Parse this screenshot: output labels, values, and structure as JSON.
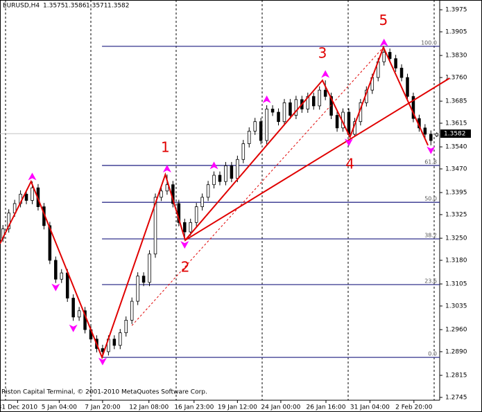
{
  "chart_data": {
    "type": "candlestick",
    "symbol": "EURUSD,H4",
    "footer": "Riston Capital Terminal, © 2001-2010 MetaQuotes Software Corp.",
    "xlim": [
      0,
      75
    ],
    "ylim": [
      1.2736,
      1.4006
    ],
    "yticks": [
      1.3975,
      1.3905,
      {
        "value": 1.383,
        "label": "1.3830"
      },
      {
        "value": 1.376,
        "label": "1.3760"
      },
      1.3685,
      1.3615,
      {
        "value": 1.354,
        "label": "1.3540"
      },
      {
        "value": 1.347,
        "label": "1.3470"
      },
      1.3395,
      1.3325,
      {
        "value": 1.325,
        "label": "1.3250"
      },
      {
        "value": 1.318,
        "label": "1.3180"
      },
      1.3105,
      1.3035,
      {
        "value": 1.296,
        "label": "1.2960"
      },
      {
        "value": 1.289,
        "label": "1.2890"
      },
      1.2815,
      1.2745
    ],
    "xticks": [
      {
        "value": 3.0,
        "label": "31 Dec 2010"
      },
      {
        "value": 10.1,
        "label": "5 Jan 04:00"
      },
      {
        "value": 17.5,
        "label": "7 Jan 20:00"
      },
      {
        "value": 25.4,
        "label": "12 Jan 08:00"
      },
      {
        "value": 33.1,
        "label": "16 Jan 23:00"
      },
      {
        "value": 40.5,
        "label": "19 Jan 12:00"
      },
      {
        "value": 47.9,
        "label": "24 Jan 00:00"
      },
      {
        "value": 55.6,
        "label": "26 Jan 16:00"
      },
      {
        "value": 63.1,
        "label": "31 Jan 04:00"
      },
      {
        "value": 70.6,
        "label": "2 Feb 20:00"
      }
    ],
    "ohlc": [
      [
        1.325,
        1.3292,
        1.3238,
        1.328
      ],
      [
        1.328,
        1.3342,
        1.3268,
        1.333
      ],
      [
        1.333,
        1.3372,
        1.3318,
        1.336
      ],
      [
        1.336,
        1.3402,
        1.3348,
        1.339
      ],
      [
        1.339,
        1.3402,
        1.3358,
        1.337
      ],
      [
        1.337,
        1.343,
        1.3358,
        1.341
      ],
      [
        1.341,
        1.3422,
        1.3338,
        1.335
      ],
      [
        1.335,
        1.3362,
        1.3278,
        1.329
      ],
      [
        1.329,
        1.3302,
        1.3168,
        1.318
      ],
      [
        1.318,
        1.3192,
        1.3108,
        1.312
      ],
      [
        1.312,
        1.3152,
        1.3108,
        1.314
      ],
      [
        1.314,
        1.3152,
        1.3048,
        1.306
      ],
      [
        1.306,
        1.3072,
        1.2988,
        1.3
      ],
      [
        1.3,
        1.3032,
        1.2988,
        1.302
      ],
      [
        1.302,
        1.3032,
        1.2948,
        1.296
      ],
      [
        1.296,
        1.2972,
        1.2918,
        1.293
      ],
      [
        1.293,
        1.2942,
        1.2888,
        1.29
      ],
      [
        1.29,
        1.2912,
        1.2872,
        1.289
      ],
      [
        1.289,
        1.2942,
        1.2878,
        1.293
      ],
      [
        1.293,
        1.2942,
        1.2898,
        1.291
      ],
      [
        1.291,
        1.2962,
        1.2898,
        1.295
      ],
      [
        1.295,
        1.3002,
        1.2938,
        1.299
      ],
      [
        1.299,
        1.3062,
        1.2978,
        1.305
      ],
      [
        1.305,
        1.3142,
        1.3038,
        1.313
      ],
      [
        1.313,
        1.3142,
        1.3098,
        1.311
      ],
      [
        1.311,
        1.3212,
        1.3098,
        1.32
      ],
      [
        1.32,
        1.3392,
        1.3188,
        1.338
      ],
      [
        1.338,
        1.3412,
        1.3368,
        1.34
      ],
      [
        1.34,
        1.3452,
        1.3388,
        1.342
      ],
      [
        1.342,
        1.3432,
        1.3348,
        1.336
      ],
      [
        1.336,
        1.3372,
        1.3288,
        1.33
      ],
      [
        1.33,
        1.3312,
        1.3244,
        1.327
      ],
      [
        1.327,
        1.3312,
        1.3258,
        1.33
      ],
      [
        1.33,
        1.3362,
        1.3288,
        1.335
      ],
      [
        1.335,
        1.3392,
        1.3338,
        1.338
      ],
      [
        1.338,
        1.3432,
        1.3368,
        1.342
      ],
      [
        1.342,
        1.3462,
        1.3408,
        1.345
      ],
      [
        1.345,
        1.3462,
        1.3418,
        1.343
      ],
      [
        1.343,
        1.3492,
        1.3418,
        1.348
      ],
      [
        1.348,
        1.3492,
        1.3428,
        1.344
      ],
      [
        1.344,
        1.3512,
        1.3428,
        1.35
      ],
      [
        1.35,
        1.3562,
        1.3488,
        1.355
      ],
      [
        1.355,
        1.3602,
        1.3538,
        1.359
      ],
      [
        1.359,
        1.3632,
        1.3578,
        1.362
      ],
      [
        1.362,
        1.3632,
        1.3548,
        1.356
      ],
      [
        1.356,
        1.3672,
        1.3548,
        1.366
      ],
      [
        1.366,
        1.3672,
        1.3638,
        1.365
      ],
      [
        1.365,
        1.3662,
        1.3608,
        1.362
      ],
      [
        1.362,
        1.3692,
        1.3608,
        1.368
      ],
      [
        1.368,
        1.3692,
        1.3628,
        1.364
      ],
      [
        1.364,
        1.3702,
        1.3628,
        1.369
      ],
      [
        1.369,
        1.3702,
        1.3648,
        1.366
      ],
      [
        1.366,
        1.3712,
        1.3648,
        1.37
      ],
      [
        1.37,
        1.3712,
        1.3658,
        1.367
      ],
      [
        1.367,
        1.3732,
        1.3658,
        1.372
      ],
      [
        1.372,
        1.3751,
        1.3688,
        1.37
      ],
      [
        1.37,
        1.3712,
        1.3628,
        1.364
      ],
      [
        1.364,
        1.3652,
        1.3588,
        1.36
      ],
      [
        1.36,
        1.3662,
        1.3588,
        1.365
      ],
      [
        1.365,
        1.3662,
        1.3571,
        1.358
      ],
      [
        1.358,
        1.3632,
        1.3575,
        1.362
      ],
      [
        1.362,
        1.3692,
        1.3608,
        1.368
      ],
      [
        1.368,
        1.3732,
        1.3668,
        1.372
      ],
      [
        1.372,
        1.3772,
        1.3708,
        1.376
      ],
      [
        1.376,
        1.3822,
        1.3748,
        1.381
      ],
      [
        1.381,
        1.3856,
        1.3798,
        1.384
      ],
      [
        1.384,
        1.3852,
        1.3808,
        1.382
      ],
      [
        1.382,
        1.3832,
        1.3778,
        1.379
      ],
      [
        1.379,
        1.3802,
        1.3748,
        1.376
      ],
      [
        1.376,
        1.3772,
        1.3688,
        1.37
      ],
      [
        1.37,
        1.3712,
        1.3618,
        1.363
      ],
      [
        1.363,
        1.3642,
        1.3588,
        1.36
      ],
      [
        1.36,
        1.3612,
        1.3568,
        1.358
      ],
      [
        1.358,
        1.3592,
        1.3545,
        1.356
      ],
      [
        1.3575,
        1.3586,
        1.3571,
        1.3582
      ]
    ],
    "zigzag": {
      "color": "#e00000",
      "x": [
        0,
        5.3,
        17.4,
        28.2,
        31.6,
        55.0,
        59.7,
        65.4,
        73.0
      ],
      "y": [
        1.3233,
        1.343,
        1.2872,
        1.3452,
        1.3244,
        1.3751,
        1.3571,
        1.3856,
        1.3545
      ]
    },
    "wave_labels": [
      "1",
      "2",
      "3",
      "4",
      "5"
    ],
    "trendline": {
      "x": [
        31.6,
        76.7
      ],
      "y": [
        1.3244,
        1.3758
      ]
    },
    "channel": {
      "x": [
        22.5,
        65.4
      ],
      "y": [
        1.2973,
        1.3856
      ]
    },
    "fib_color": "#30308c",
    "fib_levels": [
      {
        "level": {
          "value": 100,
          "label": "100.0"
        },
        "price": 1.3859
      },
      {
        "level": 61.8,
        "price": 1.3481
      },
      {
        "level": {
          "value": 50,
          "label": "50.0"
        },
        "price": 1.3364
      },
      {
        "level": 38.2,
        "price": 1.3248
      },
      {
        "level": 23.6,
        "price": 1.3103
      },
      {
        "level": {
          "value": 0,
          "label": "0.0"
        },
        "price": 1.2872
      }
    ],
    "fractal_color": "#ff00ff",
    "fractals_up": [
      [
        5.5,
        1.3445
      ],
      [
        28.5,
        1.347
      ],
      [
        36.5,
        1.348
      ],
      [
        45.5,
        1.369
      ],
      [
        55.5,
        1.377
      ],
      [
        65.5,
        1.387
      ]
    ],
    "fractals_down": [
      [
        9.5,
        1.3095
      ],
      [
        12.5,
        1.2965
      ],
      [
        17.5,
        1.286
      ],
      [
        31.5,
        1.323
      ],
      [
        59.5,
        1.3555
      ],
      [
        73.5,
        1.353
      ]
    ]
  }
}
